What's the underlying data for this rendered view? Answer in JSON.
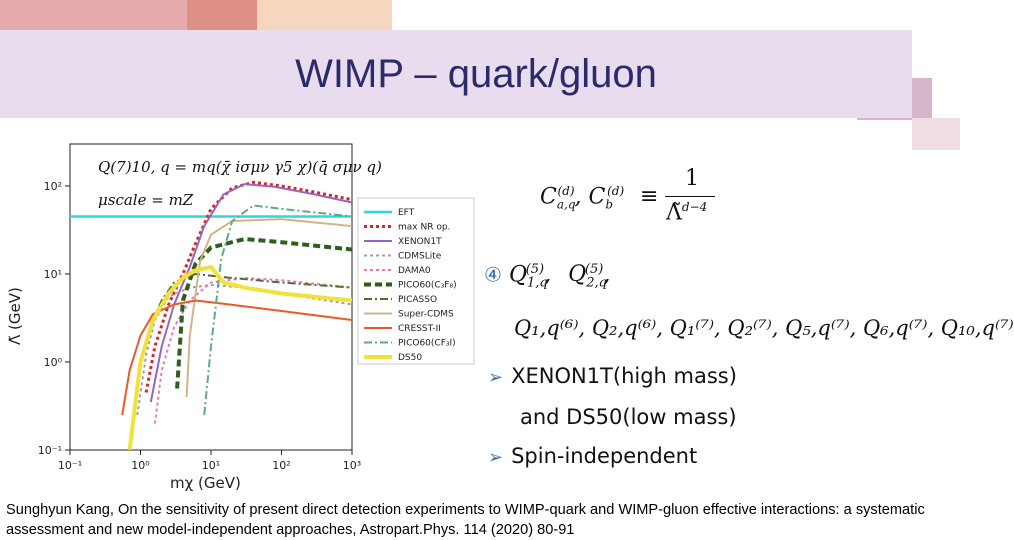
{
  "slide": {
    "title": "WIMP – quark/gluon",
    "citation": "Sunghyun Kang, On the sensitivity of present direct detection experiments to WIMP-quark and WIMP-gluon effective interactions: a systematic assessment and new model-independent approaches, Astropart.Phys. 114 (2020) 80-91"
  },
  "formula": {
    "lhs": "C",
    "lhs_sub_a": "a,q",
    "lhs_sup_a": "(d)",
    "lhs_sub_b": "b",
    "lhs_sup_b": "(d)",
    "equiv": "≡",
    "numerator": "1",
    "denominator": "Λ̃",
    "den_sup": "d−4"
  },
  "bullets": {
    "circled_four": "④",
    "ops_line1": [
      "Q",
      "1,q",
      "(5)",
      "Q",
      "2,q",
      "(5)"
    ],
    "ops_line2": "Q₁,q⁽⁶⁾, Q₂,q⁽⁶⁾, Q₁⁽⁷⁾, Q₂⁽⁷⁾, Q₅,q⁽⁷⁾, Q₆,q⁽⁷⁾, Q₁₀,q⁽⁷⁾",
    "item_xenon": "XENON1T(high mass)",
    "item_ds50": "and DS50(low mass)",
    "item_si": "Spin-independent"
  },
  "chart_data": {
    "type": "line",
    "xlabel": "mχ (GeV)",
    "ylabel": "Λ̃ (GeV)",
    "x_scale": "log",
    "y_scale": "log",
    "xlim": [
      0.1,
      1000
    ],
    "ylim": [
      0.1,
      300
    ],
    "x_ticks": [
      "10⁻¹",
      "10⁰",
      "10¹",
      "10²",
      "10³"
    ],
    "y_ticks": [
      "10⁻¹",
      "10⁰",
      "10¹",
      "10²"
    ],
    "annotation_line1": "Q(7)10, q = mq(χ̄ iσμν γ5 χ)(q̄ σμν q)",
    "annotation_line2": "μscale = mZ",
    "grid": false,
    "legend_position": "right-outside",
    "legend": [
      "EFT",
      "max NR op.",
      "XENON1T",
      "CDMSLite",
      "DAMA0",
      "PICO60(C₃F₈)",
      "PICASSO",
      "Super-CDMS",
      "CRESST-II",
      "PICO60(CF₃I)",
      "DS50"
    ],
    "series": [
      {
        "name": "EFT",
        "color": "#30d5e0",
        "style": "solid",
        "points": [
          [
            0.1,
            45
          ],
          [
            1000,
            45
          ]
        ]
      },
      {
        "name": "max NR op.",
        "color": "#d62728",
        "style": "dotted",
        "points": [
          [
            1.2,
            0.45
          ],
          [
            1.6,
            1.5
          ],
          [
            2.5,
            4.5
          ],
          [
            4,
            10
          ],
          [
            6,
            22
          ],
          [
            10,
            55
          ],
          [
            20,
            95
          ],
          [
            40,
            110
          ],
          [
            100,
            100
          ],
          [
            300,
            85
          ],
          [
            1000,
            70
          ]
        ]
      },
      {
        "name": "XENON1T",
        "color": "#9467bd",
        "style": "solid",
        "points": [
          [
            1.4,
            0.35
          ],
          [
            2,
            1.5
          ],
          [
            3,
            4.5
          ],
          [
            5,
            12
          ],
          [
            8,
            35
          ],
          [
            15,
            80
          ],
          [
            30,
            105
          ],
          [
            80,
            98
          ],
          [
            300,
            80
          ],
          [
            1000,
            65
          ]
        ]
      },
      {
        "name": "CDMSLite",
        "color": "#a0a0a0",
        "style": "dotted",
        "points": [
          [
            0.9,
            0.25
          ],
          [
            1.2,
            1.2
          ],
          [
            1.6,
            3
          ],
          [
            2.5,
            5.5
          ],
          [
            5,
            7
          ],
          [
            10,
            7.5
          ],
          [
            30,
            7
          ],
          [
            100,
            6
          ],
          [
            1000,
            4.5
          ]
        ]
      },
      {
        "name": "DAMA0",
        "color": "#e377c2",
        "style": "dotted",
        "points": [
          [
            1.6,
            0.2
          ],
          [
            2,
            0.8
          ],
          [
            3,
            2.5
          ],
          [
            5,
            5
          ],
          [
            10,
            8
          ],
          [
            30,
            9
          ],
          [
            100,
            8.5
          ],
          [
            1000,
            7
          ]
        ]
      },
      {
        "name": "PICO60(C₃F₈)",
        "color": "#2d5e1a",
        "style": "dashed",
        "points": [
          [
            3.3,
            0.5
          ],
          [
            4,
            5
          ],
          [
            6,
            13
          ],
          [
            10,
            20
          ],
          [
            30,
            25
          ],
          [
            100,
            23
          ],
          [
            1000,
            19
          ]
        ]
      },
      {
        "name": "PICASSO",
        "color": "#556b2f",
        "style": "dashdot",
        "points": [
          [
            0.8,
            0.25
          ],
          [
            1,
            1
          ],
          [
            1.5,
            3
          ],
          [
            2,
            5
          ],
          [
            3,
            8
          ],
          [
            6,
            10
          ],
          [
            20,
            9
          ],
          [
            100,
            8
          ],
          [
            1000,
            7
          ]
        ]
      },
      {
        "name": "Super-CDMS",
        "color": "#d2b48c",
        "style": "solid",
        "points": [
          [
            4.5,
            0.4
          ],
          [
            5,
            2
          ],
          [
            7,
            14
          ],
          [
            10,
            28
          ],
          [
            20,
            40
          ],
          [
            100,
            42
          ],
          [
            1000,
            35
          ]
        ]
      },
      {
        "name": "CRESST-II",
        "color": "#ea5a28",
        "style": "solid",
        "points": [
          [
            0.55,
            0.25
          ],
          [
            0.7,
            0.8
          ],
          [
            1,
            2
          ],
          [
            1.5,
            3.5
          ],
          [
            3,
            4.5
          ],
          [
            6,
            5
          ],
          [
            15,
            4.6
          ],
          [
            100,
            3.8
          ],
          [
            1000,
            3
          ]
        ]
      },
      {
        "name": "PICO60(CF₃I)",
        "color": "#5fa88a",
        "style": "dashdot",
        "points": [
          [
            8,
            0.25
          ],
          [
            10,
            1.5
          ],
          [
            14,
            15
          ],
          [
            20,
            40
          ],
          [
            40,
            60
          ],
          [
            100,
            55
          ],
          [
            1000,
            45
          ]
        ]
      },
      {
        "name": "DS50",
        "color": "#f2e13a",
        "style": "solid",
        "points": [
          [
            0.7,
            0.1
          ],
          [
            1,
            1
          ],
          [
            1.5,
            3
          ],
          [
            2.5,
            6
          ],
          [
            4,
            9
          ],
          [
            6,
            11
          ],
          [
            10,
            12
          ],
          [
            15,
            8
          ],
          [
            30,
            7
          ],
          [
            100,
            6
          ],
          [
            1000,
            5
          ]
        ]
      }
    ]
  }
}
